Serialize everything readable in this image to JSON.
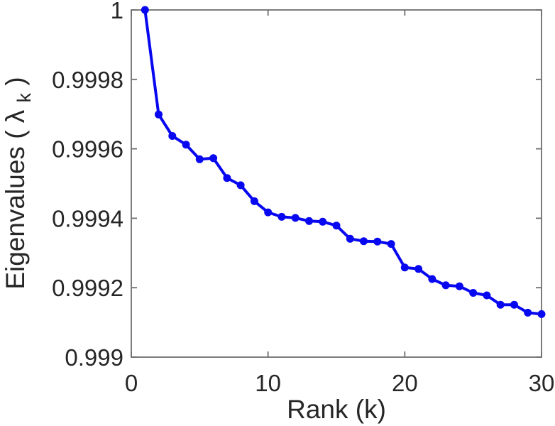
{
  "figure": {
    "background": "#ffffff"
  },
  "chart_data": {
    "type": "line",
    "title": "",
    "xlabel": "Rank (k)",
    "ylabel": "Eigenvalues ( λk )",
    "ylabel_parts": {
      "prefix": "Eigenvalues ( λ",
      "sub": "k",
      "suffix": " )"
    },
    "series_name": "eigenvalues",
    "x": [
      1,
      2,
      3,
      4,
      5,
      6,
      7,
      8,
      9,
      10,
      11,
      12,
      13,
      14,
      15,
      16,
      17,
      18,
      19,
      20,
      21,
      22,
      23,
      24,
      25,
      26,
      27,
      28,
      29,
      30
    ],
    "values": [
      1.0,
      0.999699,
      0.999637,
      0.999612,
      0.99957,
      0.999573,
      0.999516,
      0.999495,
      0.999449,
      0.999417,
      0.999404,
      0.999401,
      0.999392,
      0.99939,
      0.999379,
      0.999341,
      0.999334,
      0.999333,
      0.999326,
      0.999258,
      0.999254,
      0.999225,
      0.999207,
      0.999204,
      0.999185,
      0.999178,
      0.999151,
      0.999151,
      0.999128,
      0.999124
    ],
    "xlim": [
      0,
      30
    ],
    "ylim": [
      0.999,
      1
    ],
    "x_ticks": [
      0,
      10,
      20,
      30
    ],
    "x_tick_labels": [
      "0",
      "10",
      "20",
      "30"
    ],
    "y_ticks": [
      1,
      0.9998,
      0.9996,
      0.9994,
      0.9992,
      0.999
    ],
    "y_tick_labels": [
      "1",
      "0.9998",
      "0.9996",
      "0.9994",
      "0.9992",
      "0.999"
    ],
    "grid": false,
    "legend": null,
    "box": true,
    "tick_direction": "in",
    "line_color": "#0808f0",
    "marker": "circle",
    "axis_color": "#6e6e6e",
    "text_color": "#262626"
  }
}
